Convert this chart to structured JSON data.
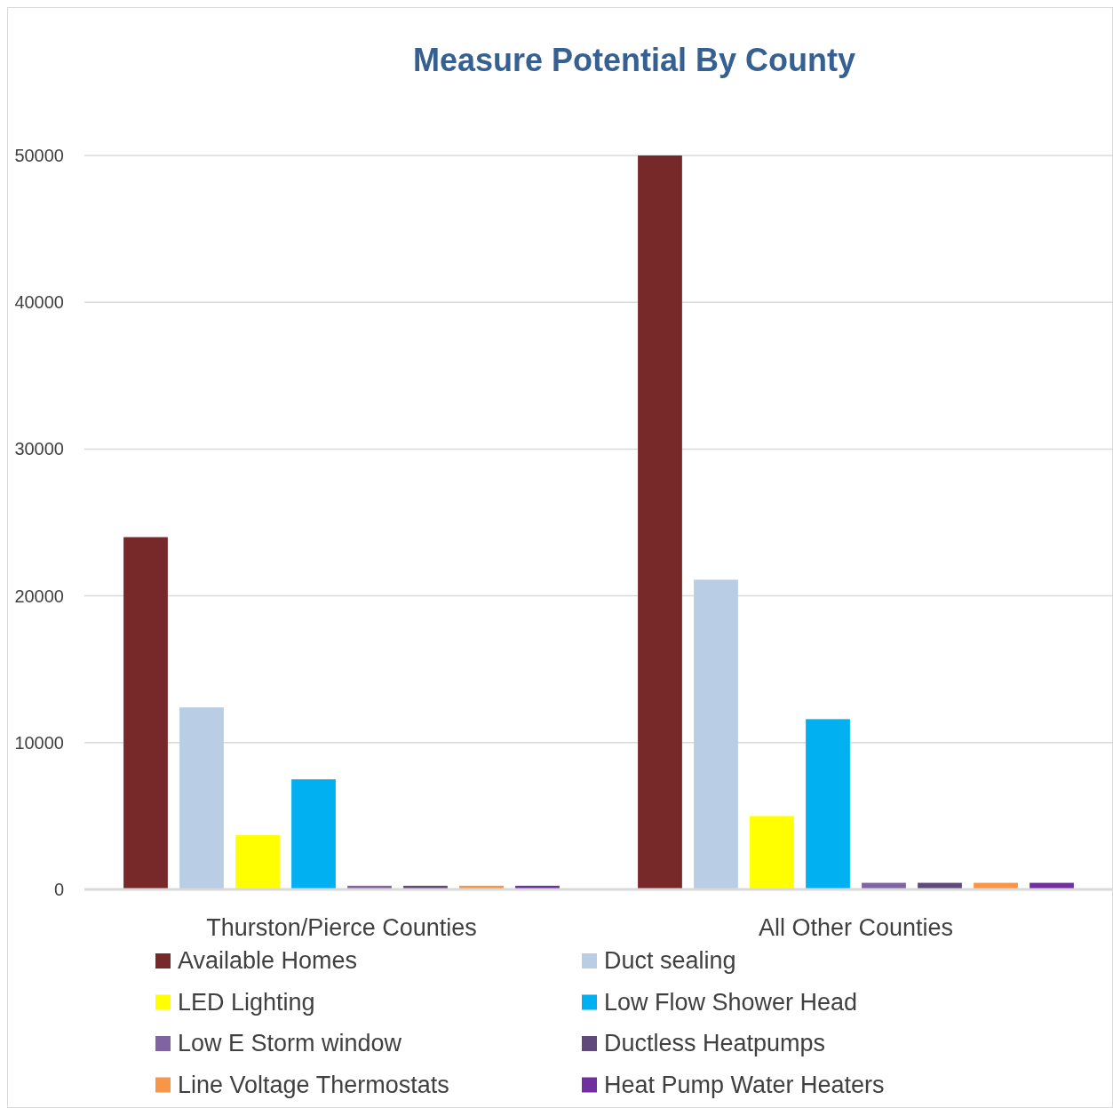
{
  "chart_data": {
    "type": "bar",
    "title": "Measure Potential By County",
    "categories": [
      "Thurston/Pierce Counties",
      "All Other Counties"
    ],
    "series": [
      {
        "name": "Available Homes",
        "color": "#772828",
        "values": [
          24000,
          50000
        ]
      },
      {
        "name": "Duct sealing",
        "color": "#b9cde5",
        "values": [
          12400,
          21100
        ]
      },
      {
        "name": "LED Lighting",
        "color": "#ffff00",
        "values": [
          3700,
          5000
        ]
      },
      {
        "name": "Low Flow Shower Head",
        "color": "#00b0f0",
        "values": [
          7500,
          11600
        ]
      },
      {
        "name": "Low E Storm window",
        "color": "#8064a2",
        "values": [
          250,
          450
        ]
      },
      {
        "name": "Ductless Heatpumps",
        "color": "#604a7b",
        "values": [
          250,
          450
        ]
      },
      {
        "name": "Line Voltage Thermostats",
        "color": "#f79646",
        "values": [
          250,
          450
        ]
      },
      {
        "name": "Heat Pump Water Heaters",
        "color": "#7030a0",
        "values": [
          250,
          450
        ]
      }
    ],
    "ylim": [
      0,
      50000
    ],
    "yticks": [
      0,
      10000,
      20000,
      30000,
      40000,
      50000
    ],
    "grid": "y",
    "legend": "bottom"
  }
}
